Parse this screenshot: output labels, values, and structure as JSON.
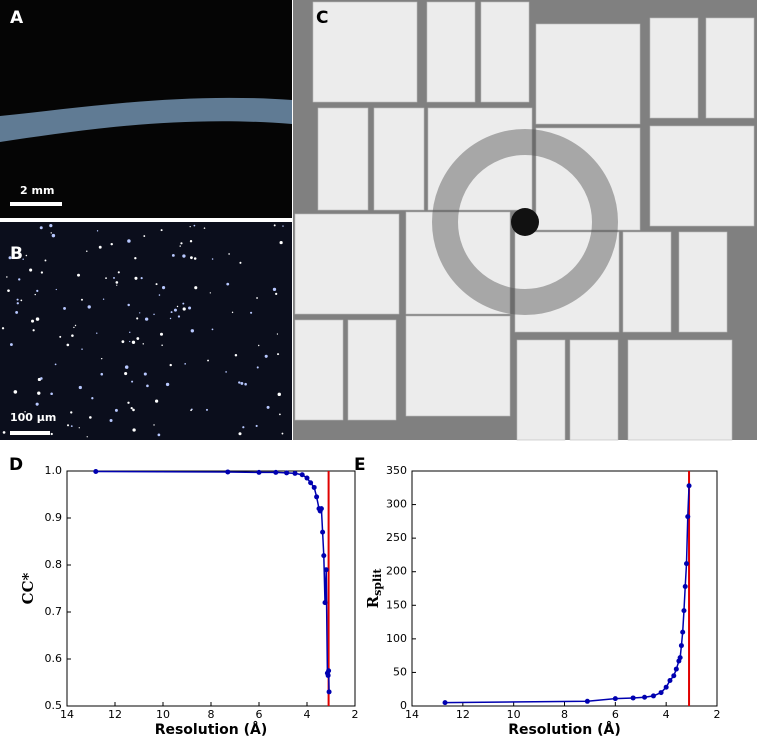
{
  "figure": {
    "panels": [
      {
        "label": "A",
        "scale_bar": "2 mm"
      },
      {
        "label": "B",
        "scale_bar": "100 μm"
      },
      {
        "label": "C"
      }
    ]
  },
  "chart_data": [
    {
      "type": "line",
      "panel_label": "D",
      "xlabel": "Resolution (Å)",
      "ylabel": "CC*",
      "color": "#0000b0",
      "reference_x": 3.1,
      "reference_color": "#e00000",
      "x": [
        12.8,
        7.3,
        6.0,
        5.3,
        4.85,
        4.5,
        4.2,
        4.0,
        3.85,
        3.7,
        3.6,
        3.5,
        3.45,
        3.4,
        3.35,
        3.3,
        3.25,
        3.2,
        3.15,
        3.12,
        3.1,
        3.08
      ],
      "values": [
        0.999,
        0.998,
        0.997,
        0.997,
        0.996,
        0.995,
        0.992,
        0.985,
        0.975,
        0.965,
        0.945,
        0.92,
        0.915,
        0.92,
        0.87,
        0.82,
        0.72,
        0.79,
        0.57,
        0.565,
        0.575,
        0.53
      ],
      "xlim": [
        14,
        2
      ],
      "ylim": [
        0.5,
        1.0
      ],
      "xticks": [
        14,
        12,
        10,
        8,
        6,
        4,
        2
      ],
      "yticks": [
        0.5,
        0.6,
        0.7,
        0.8,
        0.9,
        {
          "value": 1,
          "label": "1.0"
        }
      ]
    },
    {
      "type": "line",
      "panel_label": "E",
      "xlabel": "Resolution (Å)",
      "ylabel": "R",
      "ylabel_sub": "split",
      "color": "#0000b0",
      "reference_x": 3.1,
      "reference_color": "#e00000",
      "x": [
        12.7,
        7.1,
        6.0,
        5.3,
        4.85,
        4.5,
        4.2,
        4.0,
        3.85,
        3.7,
        3.6,
        3.5,
        3.45,
        3.4,
        3.35,
        3.3,
        3.25,
        3.2,
        3.15,
        3.1
      ],
      "values": [
        5,
        7,
        11,
        12,
        13,
        15,
        20,
        28,
        38,
        45,
        55,
        67,
        72,
        90,
        110,
        142,
        178,
        212,
        282,
        328
      ],
      "xlim": [
        14,
        2
      ],
      "ylim": [
        0,
        350
      ],
      "xticks": [
        14,
        12,
        10,
        8,
        6,
        4,
        2
      ],
      "yticks": [
        0,
        50,
        100,
        150,
        200,
        250,
        300,
        350
      ]
    }
  ]
}
